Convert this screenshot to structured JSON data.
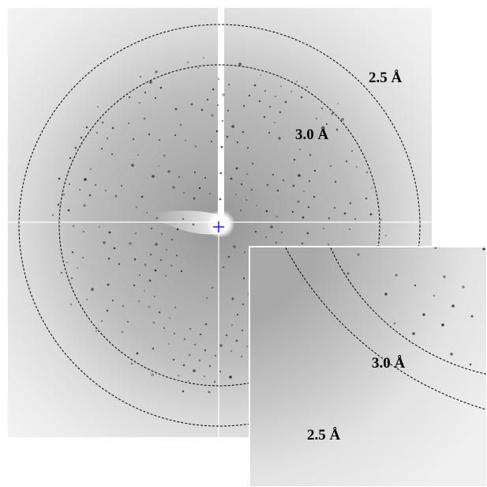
{
  "main_panel": {
    "resolution_rings": [
      {
        "label": "2.5 Å"
      },
      {
        "label": "3.0 Å"
      }
    ]
  },
  "inset_panel": {
    "resolution_rings": [
      {
        "label": "3.0 Å"
      },
      {
        "label": "2.5 Å"
      }
    ]
  },
  "colors": {
    "beam_center_marker": "#1a1aff",
    "ring_line": "#000000"
  }
}
